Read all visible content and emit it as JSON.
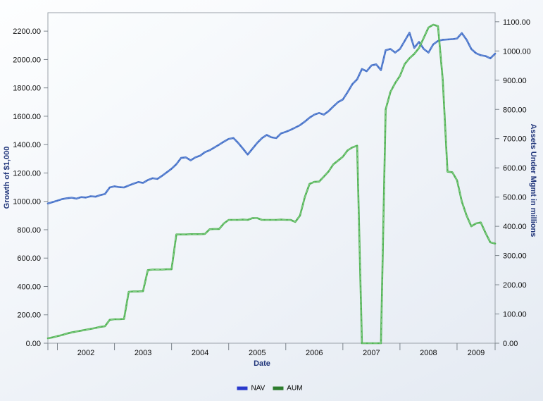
{
  "chart": {
    "left_axis_title": "Growth of $1,000",
    "right_axis_title": "Assets Under Mgmt in millions",
    "x_axis_title": "Date",
    "legend": [
      {
        "label": "NAV",
        "swatch_color": "#2939cc"
      },
      {
        "label": "AUM",
        "swatch_color": "#2c7c2c"
      }
    ],
    "colors": {
      "axis_title_text": "#21367b",
      "plot_border": "#9aa1a9",
      "tick": "#7d858d",
      "plot_bg_light": "#fafcfe",
      "plot_bg_dark": "#e8edf4"
    }
  },
  "chart_data": {
    "type": "line",
    "title": "",
    "xlabel": "Date",
    "x_frequency": "monthly",
    "x_start_month": "2001-11",
    "x_end_month": "2009-09",
    "x_tick_labels": [
      "2002",
      "2003",
      "2004",
      "2005",
      "2006",
      "2007",
      "2008",
      "2009"
    ],
    "grid": false,
    "legend_position": "bottom-center",
    "left_axis": {
      "label": "Growth of $1,000",
      "min": 0,
      "max": 2200,
      "tick_step": 200,
      "tick_labels": [
        "0.00",
        "200.00",
        "400.00",
        "600.00",
        "800.00",
        "1000.00",
        "1200.00",
        "1400.00",
        "1600.00",
        "1800.00",
        "2000.00",
        "2200.00"
      ],
      "plot_top_value": 2330
    },
    "right_axis": {
      "label": "Assets Under Mgmt in millions",
      "min": 0,
      "max": 1100,
      "tick_step": 100,
      "tick_labels": [
        "0.00",
        "100.00",
        "200.00",
        "300.00",
        "400.00",
        "500.00",
        "600.00",
        "700.00",
        "800.00",
        "900.00",
        "1000.00",
        "1100.00"
      ],
      "plot_top_value": 1131
    },
    "series": [
      {
        "name": "NAV",
        "axis": "left",
        "color": "#4470c8",
        "core_color": "#7093d8",
        "values": [
          985,
          995,
          1005,
          1016,
          1022,
          1026,
          1019,
          1030,
          1027,
          1036,
          1033,
          1044,
          1052,
          1098,
          1106,
          1100,
          1098,
          1112,
          1125,
          1136,
          1130,
          1150,
          1163,
          1158,
          1180,
          1205,
          1230,
          1262,
          1306,
          1310,
          1289,
          1310,
          1322,
          1347,
          1360,
          1380,
          1400,
          1421,
          1440,
          1446,
          1412,
          1371,
          1330,
          1371,
          1412,
          1446,
          1468,
          1451,
          1446,
          1479,
          1490,
          1504,
          1520,
          1537,
          1562,
          1590,
          1611,
          1623,
          1611,
          1636,
          1669,
          1700,
          1718,
          1770,
          1826,
          1860,
          1933,
          1917,
          1958,
          1966,
          1925,
          2065,
          2074,
          2049,
          2074,
          2131,
          2189,
          2082,
          2124,
          2074,
          2049,
          2107,
          2131,
          2139,
          2141,
          2143,
          2148,
          2186,
          2139,
          2074,
          2044,
          2030,
          2024,
          2008,
          2041
        ]
      },
      {
        "name": "AUM",
        "axis": "right",
        "color": "#52b355",
        "core_color": "#8ed190",
        "values": [
          17,
          20,
          24,
          28,
          33,
          37,
          40,
          43,
          46,
          49,
          52,
          56,
          58,
          80,
          82,
          82,
          83,
          176,
          177,
          177,
          178,
          250,
          252,
          252,
          252,
          253,
          253,
          372,
          372,
          372,
          373,
          373,
          373,
          374,
          390,
          391,
          391,
          410,
          422,
          422,
          422,
          423,
          422,
          428,
          428,
          422,
          422,
          422,
          422,
          423,
          422,
          422,
          415,
          437,
          500,
          545,
          552,
          553,
          570,
          588,
          612,
          625,
          638,
          660,
          670,
          676,
          0,
          0,
          0,
          0,
          0,
          800,
          860,
          890,
          915,
          955,
          975,
          990,
          1010,
          1045,
          1080,
          1090,
          1085,
          900,
          587,
          585,
          557,
          485,
          437,
          400,
          410,
          413,
          377,
          345,
          341
        ]
      }
    ]
  }
}
